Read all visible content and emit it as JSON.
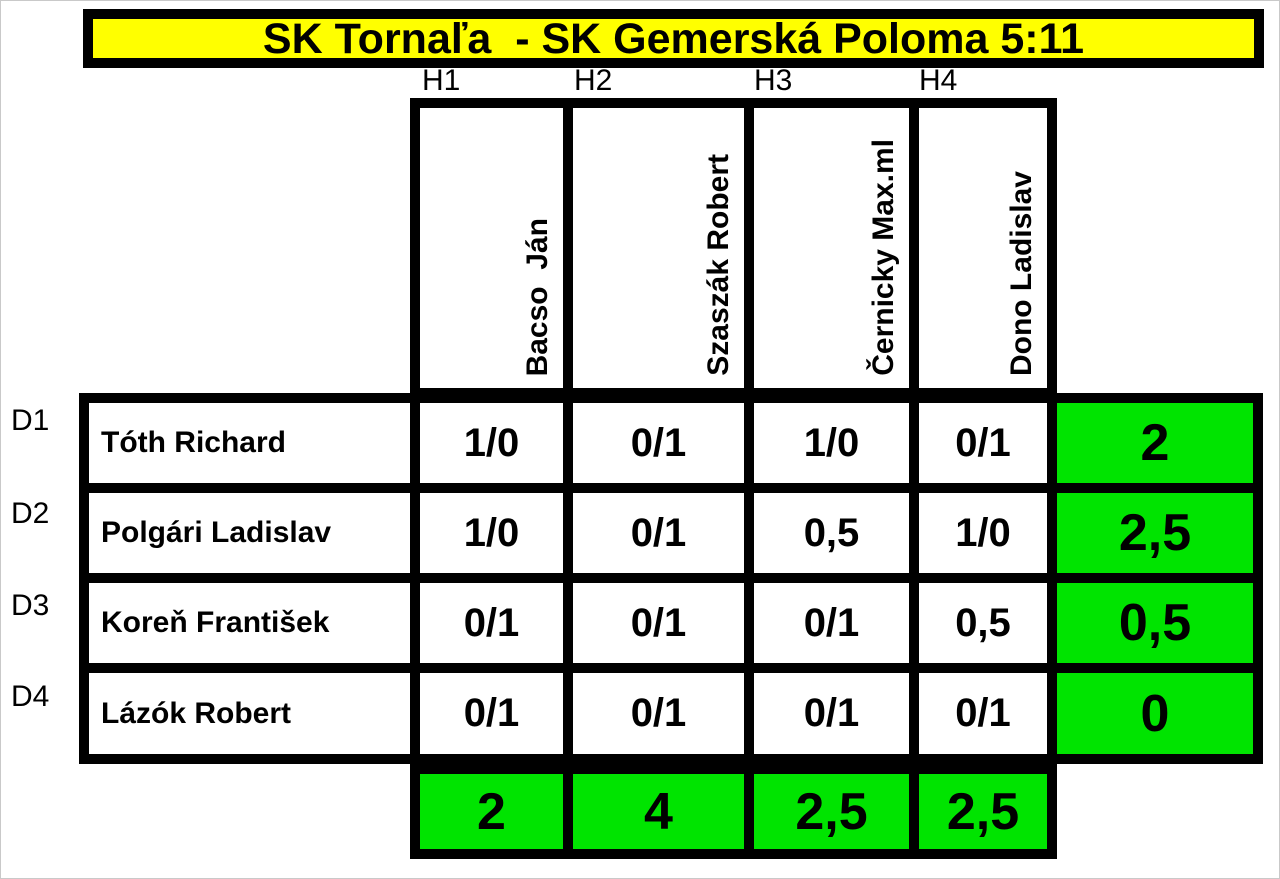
{
  "title": "SK Tornaľa  - SK Gemerská Poloma 5:11",
  "colors": {
    "title_bg": "#FFFF00",
    "total_bg": "#00E400",
    "border": "#000000",
    "cell_bg": "#FFFFFF"
  },
  "board_labels": [
    "H1",
    "H2",
    "H3",
    "H4"
  ],
  "row_labels": [
    "D1",
    "D2",
    "D3",
    "D4"
  ],
  "away_players": [
    "Bacso  Ján",
    "Szaszák Robert",
    "Černicky Max.ml",
    "Dono Ladislav"
  ],
  "home_players": [
    "Tóth Richard",
    "Polgári Ladislav",
    "Koreň František",
    "Lázók Robert"
  ],
  "results": [
    [
      "1/0",
      "0/1",
      "1/0",
      "0/1"
    ],
    [
      "1/0",
      "0/1",
      "0,5",
      "1/0"
    ],
    [
      "0/1",
      "0/1",
      "0/1",
      "0,5"
    ],
    [
      "0/1",
      "0/1",
      "0/1",
      "0/1"
    ]
  ],
  "home_totals": [
    "2",
    "2,5",
    "0,5",
    "0"
  ],
  "away_totals": [
    "2",
    "4",
    "2,5",
    "2,5"
  ]
}
